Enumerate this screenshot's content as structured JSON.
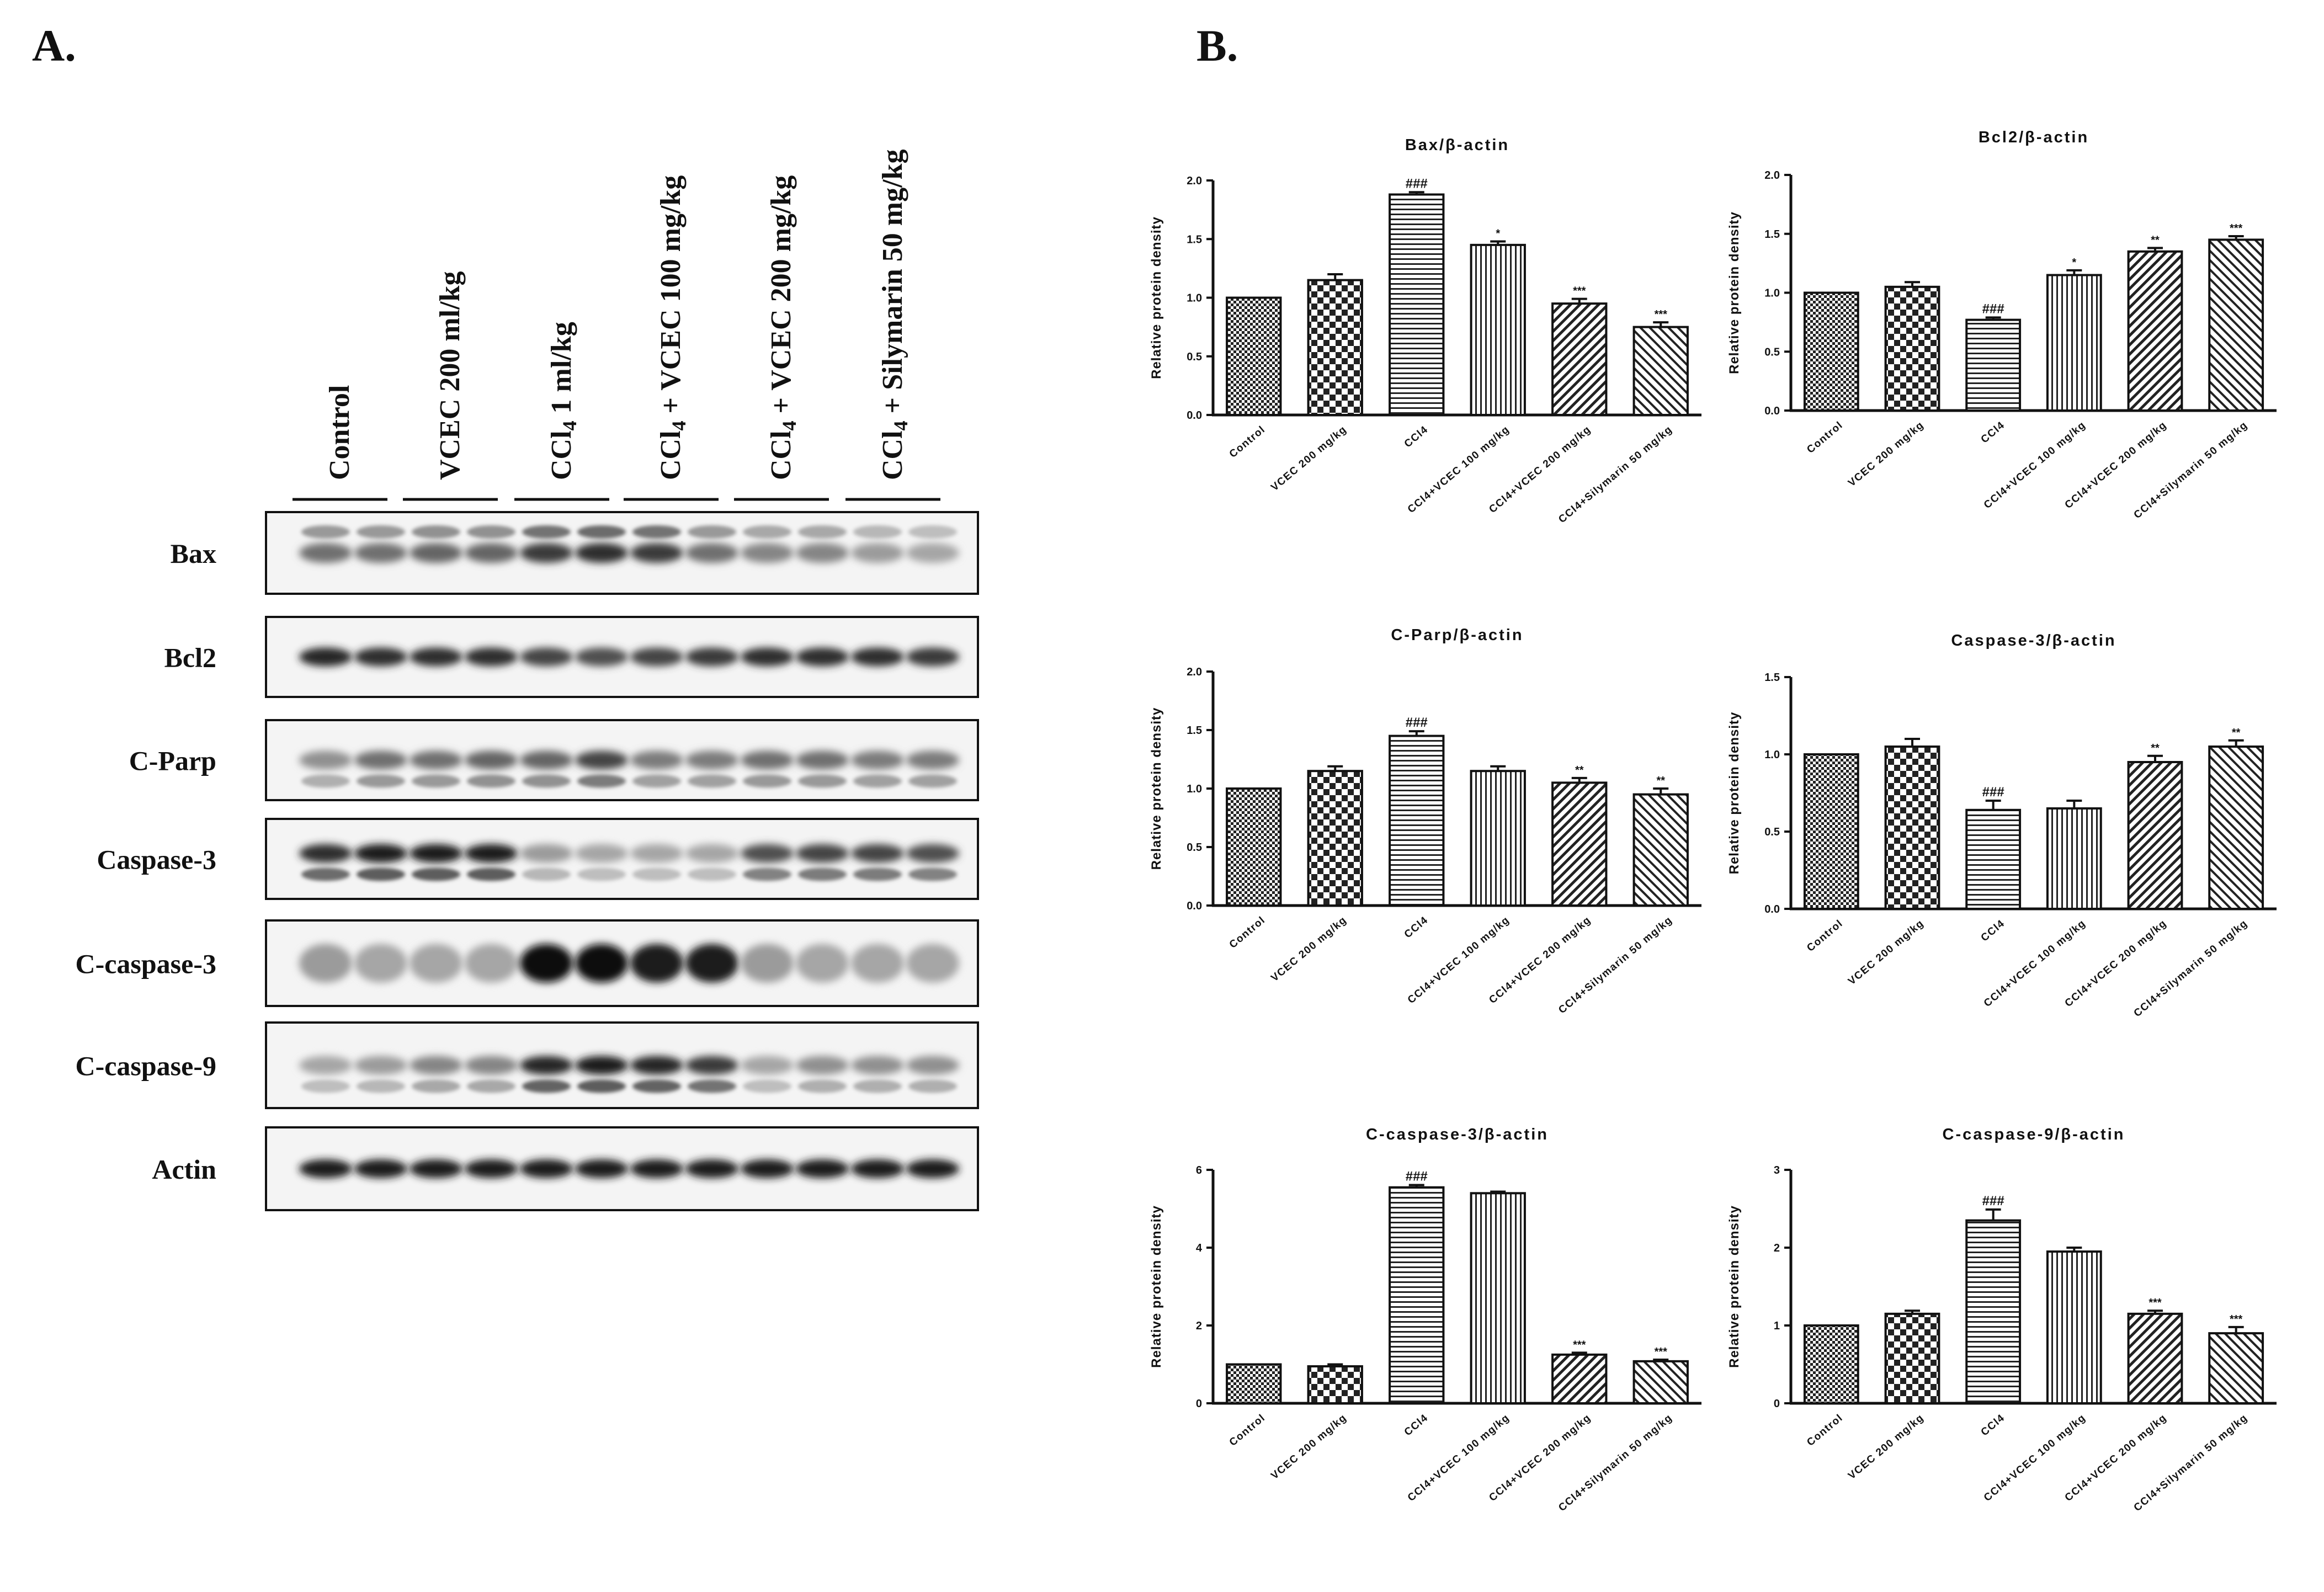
{
  "panels": {
    "a_label": "A.",
    "b_label": "B."
  },
  "blot": {
    "lanes": [
      "Control",
      "VCEC 200 ml/kg",
      "CCl4 1 ml/kg",
      "CCl4 + VCEC 100 mg/kg",
      "CCl4 + VCEC 200 mg/kg",
      "CCl4 + Silymarin 50 mg/kg"
    ],
    "rows": [
      "Bax",
      "Bcl2",
      "C-Parp",
      "Caspase-3",
      "C-caspase-3",
      "C-caspase-9",
      "Actin"
    ]
  },
  "chart_data": [
    {
      "type": "bar",
      "title": "Bax/β-actin",
      "ylabel": "Relative protein density",
      "ylim": [
        0,
        2.0
      ],
      "yticks": [
        "0.0",
        "0.5",
        "1.0",
        "1.5",
        "2.0"
      ],
      "categories": [
        "Control",
        "VCEC 200 mg/kg",
        "CCl4",
        "CCl4+VCEC 100 mg/kg",
        "CCl4+VCEC 200 mg/kg",
        "CCl4+Silymarin 50 mg/kg"
      ],
      "values": [
        1.0,
        1.15,
        1.88,
        1.45,
        0.95,
        0.75
      ],
      "errors": [
        0.0,
        0.05,
        0.02,
        0.03,
        0.04,
        0.04
      ],
      "annotations": [
        "",
        "",
        "###",
        "*",
        "***",
        "***"
      ],
      "patterns": [
        "dots",
        "checker",
        "hlines",
        "vlines",
        "diag1",
        "diag2"
      ],
      "axis_max_label": "2.0"
    },
    {
      "type": "bar",
      "title": "Bcl2/β-actin",
      "ylabel": "Relative protein density",
      "ylim": [
        0,
        2.0
      ],
      "yticks": [
        "0.0",
        "0.5",
        "1.0",
        "1.5",
        "2.0"
      ],
      "categories": [
        "Control",
        "VCEC 200 mg/kg",
        "CCl4",
        "CCl4+VCEC 100 mg/kg",
        "CCl4+VCEC 200 mg/kg",
        "CCl4+Silymarin 50 mg/kg"
      ],
      "values": [
        1.0,
        1.05,
        0.77,
        1.15,
        1.35,
        1.45
      ],
      "errors": [
        0.0,
        0.04,
        0.02,
        0.04,
        0.03,
        0.03
      ],
      "annotations": [
        "",
        "",
        "###",
        "*",
        "**",
        "***"
      ],
      "patterns": [
        "dots",
        "checker",
        "hlines",
        "vlines",
        "diag1",
        "diag2"
      ]
    },
    {
      "type": "bar",
      "title": "C-Parp/β-actin",
      "ylabel": "Relative protein density",
      "ylim": [
        0,
        2.0
      ],
      "yticks": [
        "0.0",
        "0.5",
        "1.0",
        "1.5",
        "2.0"
      ],
      "categories": [
        "Control",
        "VCEC 200 mg/kg",
        "CCl4",
        "CCl4+VCEC 100 mg/kg",
        "CCl4+VCEC 200 mg/kg",
        "CCl4+Silymarin 50 mg/kg"
      ],
      "values": [
        1.0,
        1.15,
        1.45,
        1.15,
        1.05,
        0.95
      ],
      "errors": [
        0.0,
        0.04,
        0.04,
        0.04,
        0.04,
        0.05
      ],
      "annotations": [
        "",
        "",
        "###",
        "",
        "**",
        "**"
      ],
      "patterns": [
        "dots",
        "checker",
        "hlines",
        "vlines",
        "diag1",
        "diag2"
      ]
    },
    {
      "type": "bar",
      "title": "Caspase-3/β-actin",
      "ylabel": "Relative protein density",
      "ylim": [
        0,
        1.5
      ],
      "yticks": [
        "0.0",
        "0.5",
        "1.0",
        "1.5"
      ],
      "categories": [
        "Control",
        "VCEC 200 mg/kg",
        "CCl4",
        "CCl4+VCEC 100 mg/kg",
        "CCl4+VCEC 200 mg/kg",
        "CCl4+Silymarin 50 mg/kg"
      ],
      "values": [
        1.0,
        1.05,
        0.64,
        0.65,
        0.95,
        1.05
      ],
      "errors": [
        0.0,
        0.05,
        0.06,
        0.05,
        0.04,
        0.04
      ],
      "annotations": [
        "",
        "",
        "###",
        "",
        "**",
        "**"
      ],
      "patterns": [
        "dots",
        "checker",
        "hlines",
        "vlines",
        "diag1",
        "diag2"
      ]
    },
    {
      "type": "bar",
      "title": "C-caspase-3/β-actin",
      "ylabel": "Relative protein density",
      "ylim": [
        0,
        6
      ],
      "yticks": [
        "0",
        "2",
        "4",
        "6"
      ],
      "categories": [
        "Control",
        "VCEC 200 mg/kg",
        "CCl4",
        "CCl4+VCEC 100 mg/kg",
        "CCl4+VCEC 200 mg/kg",
        "CCl4+Silymarin 50 mg/kg"
      ],
      "values": [
        1.0,
        0.95,
        5.55,
        5.4,
        1.25,
        1.08
      ],
      "errors": [
        0.0,
        0.05,
        0.06,
        0.04,
        0.05,
        0.04
      ],
      "annotations": [
        "",
        "",
        "###",
        "",
        "***",
        "***"
      ],
      "patterns": [
        "dots",
        "checker",
        "hlines",
        "vlines",
        "diag1",
        "diag2"
      ]
    },
    {
      "type": "bar",
      "title": "C-caspase-9/β-actin",
      "ylabel": "Relative protein density",
      "ylim": [
        0,
        3
      ],
      "yticks": [
        "0",
        "1",
        "2",
        "3"
      ],
      "categories": [
        "Control",
        "VCEC 200 mg/kg",
        "CCl4",
        "CCl4+VCEC 100 mg/kg",
        "CCl4+VCEC 200 mg/kg",
        "CCl4+Silymarin 50 mg/kg"
      ],
      "values": [
        1.0,
        1.15,
        2.35,
        1.95,
        1.15,
        0.9
      ],
      "errors": [
        0.0,
        0.04,
        0.14,
        0.05,
        0.04,
        0.08
      ],
      "annotations": [
        "",
        "",
        "###",
        "",
        "***",
        "***"
      ],
      "patterns": [
        "dots",
        "checker",
        "hlines",
        "vlines",
        "diag1",
        "diag2"
      ]
    }
  ]
}
